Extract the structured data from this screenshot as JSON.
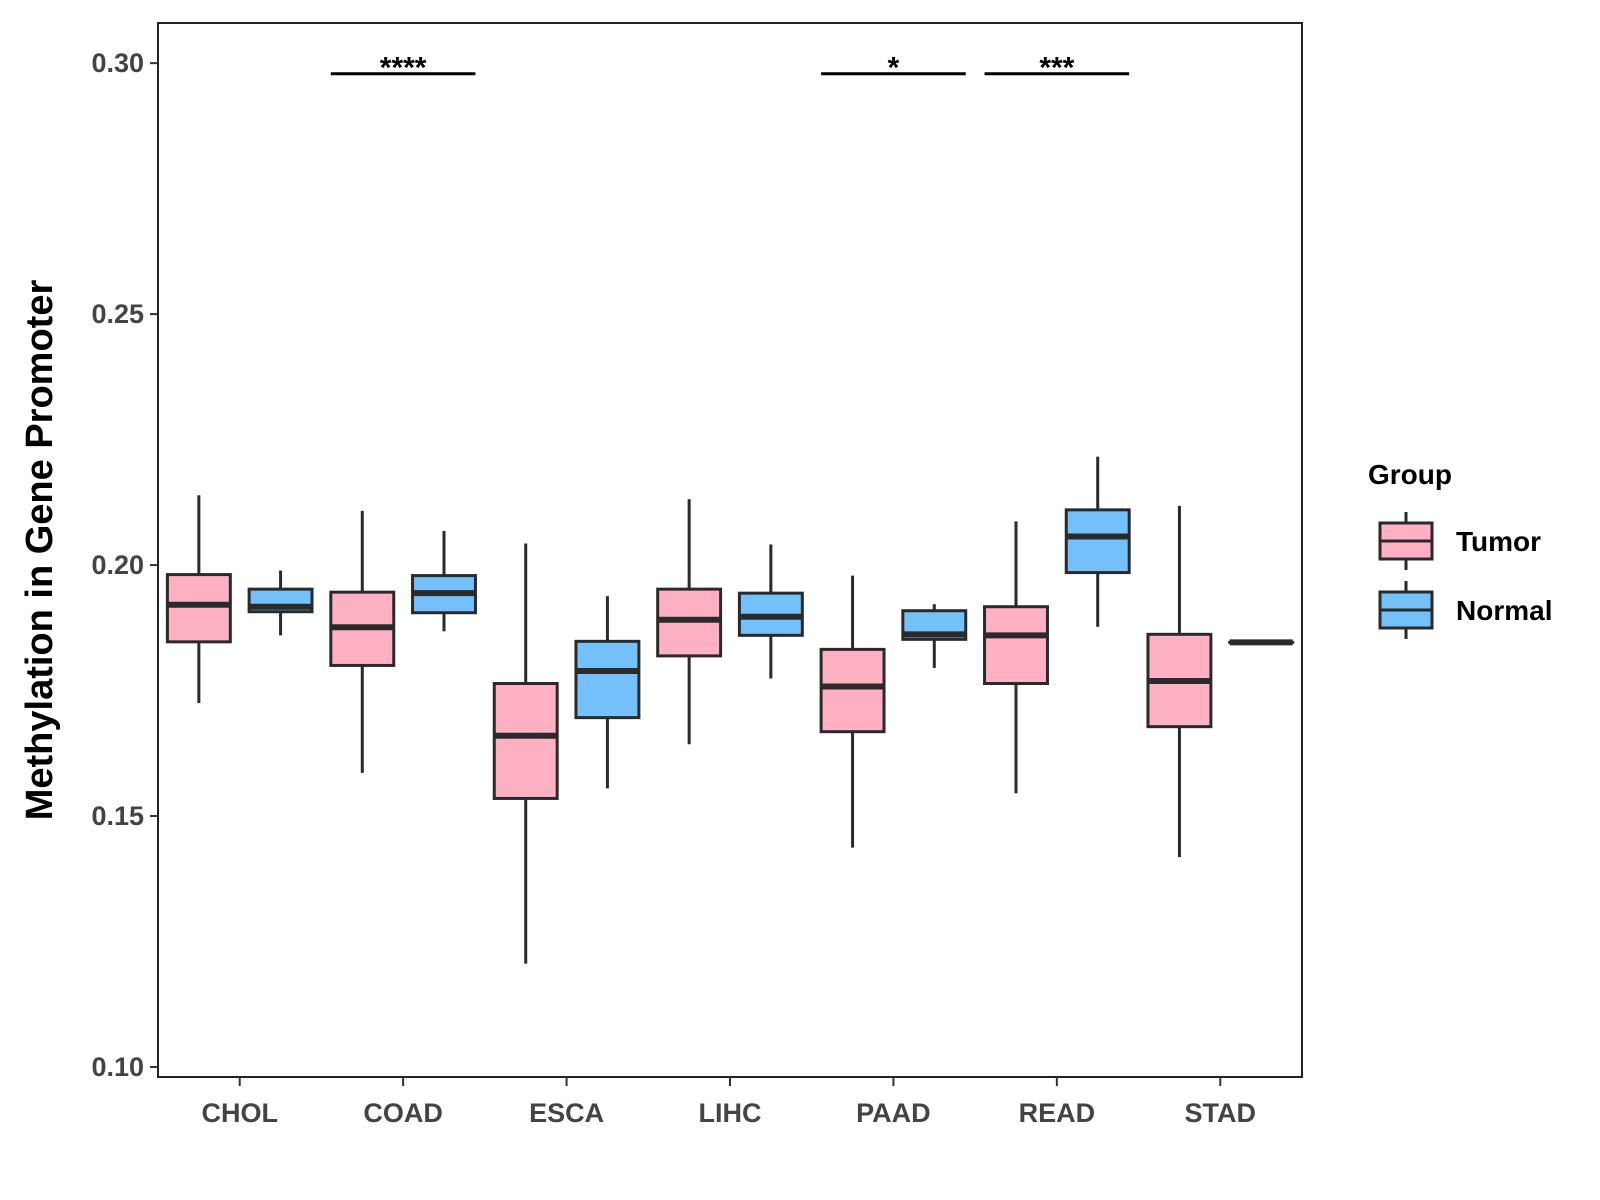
{
  "chart_data": {
    "type": "boxplot",
    "title": "",
    "xlabel": "",
    "ylabel": "Methylation in Gene Promoter",
    "ylim": [
      0.098,
      0.308
    ],
    "yticks": [
      "0.10",
      "0.15",
      "0.20",
      "0.25",
      "0.30"
    ],
    "categories": [
      "CHOL",
      "COAD",
      "ESCA",
      "LIHC",
      "PAAD",
      "READ",
      "STAD"
    ],
    "legend": {
      "title": "Group",
      "position": "right",
      "entries": [
        "Tumor",
        "Normal"
      ]
    },
    "colors": {
      "Tumor": "#FFB0C3",
      "Normal": "#73C0FA",
      "outline": "#2a2a2a"
    },
    "series": [
      {
        "name": "Tumor",
        "boxes": [
          {
            "category": "CHOL",
            "min": 0.1725,
            "q1": 0.1847,
            "median": 0.1921,
            "q3": 0.1981,
            "max": 0.2139
          },
          {
            "category": "COAD",
            "min": 0.1586,
            "q1": 0.18,
            "median": 0.1876,
            "q3": 0.1946,
            "max": 0.2108
          },
          {
            "category": "ESCA",
            "min": 0.1206,
            "q1": 0.1535,
            "median": 0.166,
            "q3": 0.1764,
            "max": 0.2043
          },
          {
            "category": "LIHC",
            "min": 0.1643,
            "q1": 0.1819,
            "median": 0.1891,
            "q3": 0.1952,
            "max": 0.2131
          },
          {
            "category": "PAAD",
            "min": 0.1437,
            "q1": 0.1668,
            "median": 0.1758,
            "q3": 0.1832,
            "max": 0.1979
          },
          {
            "category": "READ",
            "min": 0.1545,
            "q1": 0.1764,
            "median": 0.186,
            "q3": 0.1917,
            "max": 0.2087
          },
          {
            "category": "STAD",
            "min": 0.1418,
            "q1": 0.1678,
            "median": 0.1769,
            "q3": 0.1862,
            "max": 0.2118
          }
        ]
      },
      {
        "name": "Normal",
        "boxes": [
          {
            "category": "CHOL",
            "min": 0.186,
            "q1": 0.1907,
            "median": 0.1917,
            "q3": 0.1952,
            "max": 0.1989
          },
          {
            "category": "COAD",
            "min": 0.1868,
            "q1": 0.1905,
            "median": 0.1944,
            "q3": 0.1979,
            "max": 0.2068
          },
          {
            "category": "ESCA",
            "min": 0.1555,
            "q1": 0.1696,
            "median": 0.1789,
            "q3": 0.1848,
            "max": 0.1938
          },
          {
            "category": "LIHC",
            "min": 0.1774,
            "q1": 0.186,
            "median": 0.1897,
            "q3": 0.1944,
            "max": 0.2041
          },
          {
            "category": "PAAD",
            "min": 0.1795,
            "q1": 0.1852,
            "median": 0.1862,
            "q3": 0.1909,
            "max": 0.1922
          },
          {
            "category": "READ",
            "min": 0.1877,
            "q1": 0.1985,
            "median": 0.2057,
            "q3": 0.211,
            "max": 0.2216
          },
          {
            "category": "STAD",
            "min": 0.1846,
            "q1": 0.1846,
            "median": 0.1846,
            "q3": 0.1846,
            "max": 0.1846
          }
        ]
      }
    ],
    "significance": [
      {
        "category": "COAD",
        "label": "****",
        "y": 0.2979
      },
      {
        "category": "PAAD",
        "label": "*",
        "y": 0.2979
      },
      {
        "category": "READ",
        "label": "***",
        "y": 0.2979
      }
    ]
  }
}
